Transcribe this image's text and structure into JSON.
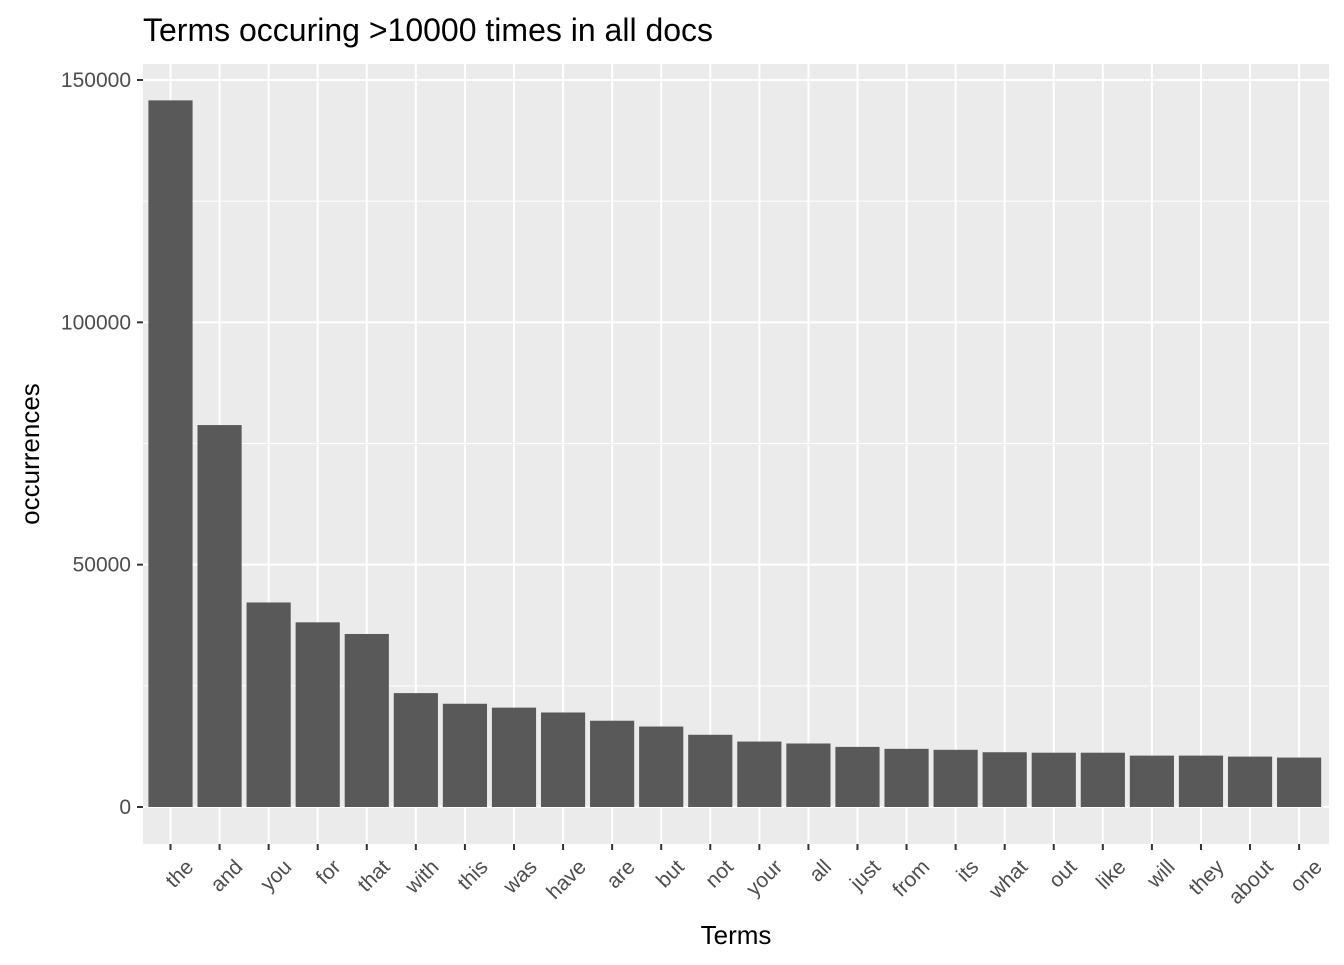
{
  "chart_data": {
    "type": "bar",
    "title": "Terms occuring >10000 times in all docs",
    "xlabel": "Terms",
    "ylabel": "occurrences",
    "categories": [
      "the",
      "and",
      "you",
      "for",
      "that",
      "with",
      "this",
      "was",
      "have",
      "are",
      "but",
      "not",
      "your",
      "all",
      "just",
      "from",
      "its",
      "what",
      "out",
      "like",
      "will",
      "they",
      "about",
      "one"
    ],
    "values": [
      145800,
      78800,
      42200,
      38100,
      35700,
      23500,
      21300,
      20500,
      19500,
      17800,
      16600,
      14900,
      13500,
      13100,
      12400,
      12000,
      11800,
      11300,
      11200,
      11200,
      10600,
      10600,
      10400,
      10200
    ],
    "ylim": [
      0,
      150000
    ],
    "yticks": [
      0,
      50000,
      100000,
      150000
    ],
    "ytick_labels": [
      "0",
      "50000",
      "100000",
      "150000"
    ],
    "grid": true,
    "bar_color": "#595959",
    "panel_color": "#ebebeb",
    "grid_color": "#ffffff"
  }
}
